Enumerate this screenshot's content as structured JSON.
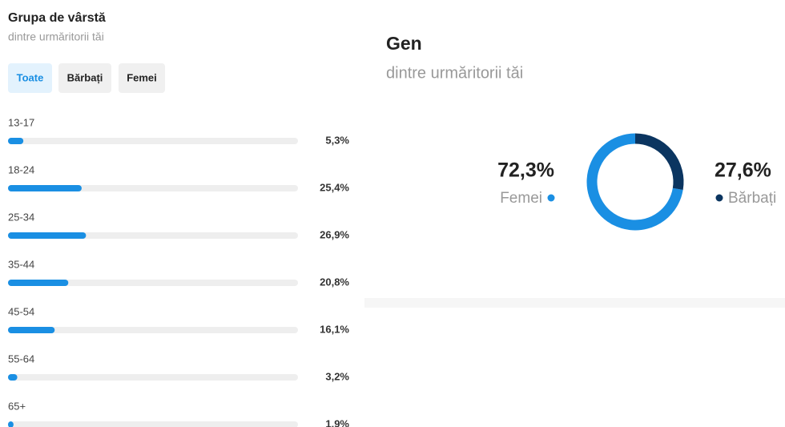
{
  "chart_data": [
    {
      "type": "bar",
      "title": "Grupa de vârstă",
      "subtitle": "dintre urmăritorii tăi",
      "categories": [
        "13-17",
        "18-24",
        "25-34",
        "35-44",
        "45-54",
        "55-64",
        "65+"
      ],
      "values": [
        5.3,
        25.4,
        26.9,
        20.8,
        16.1,
        3.2,
        1.9
      ],
      "value_labels": [
        "5,3%",
        "25,4%",
        "26,9%",
        "20,8%",
        "16,1%",
        "3,2%",
        "1,9%"
      ],
      "xlim": [
        0,
        100
      ],
      "color": "#1a8fe3"
    },
    {
      "type": "pie",
      "title": "Gen",
      "subtitle": "dintre urmăritorii tăi",
      "categories": [
        "Femei",
        "Bărbați"
      ],
      "values": [
        72.3,
        27.6
      ],
      "value_labels": [
        "72,3%",
        "27,6%"
      ],
      "colors": [
        "#1a8fe3",
        "#0b3560"
      ]
    }
  ],
  "tabs": {
    "items": [
      "Toate",
      "Bărbați",
      "Femei"
    ],
    "selected": 0
  }
}
